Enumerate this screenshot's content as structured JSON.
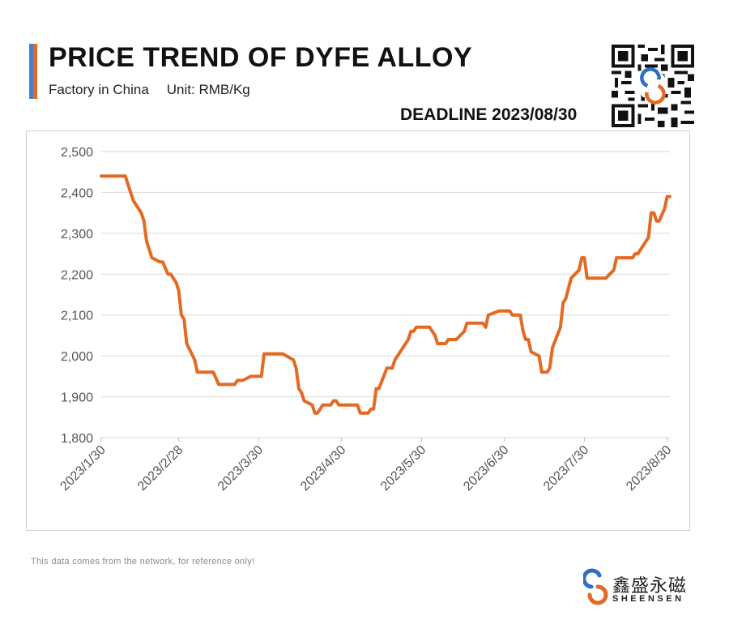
{
  "header": {
    "title": "PRICE TREND OF DYFE ALLOY",
    "source": "Factory in China",
    "unit": "Unit: RMB/Kg",
    "deadline": "DEADLINE 2023/08/30"
  },
  "footer": {
    "note": "This data comes from the network, for reference only!",
    "brand_cn": "鑫盛永磁",
    "brand_en": "SHEENSEN"
  },
  "icons": {
    "qr": "qr-code-icon",
    "logo": "sheensen-logo-icon"
  },
  "colors": {
    "line": "#e36a24",
    "brand_blue": "#2c6fc4",
    "brand_orange": "#e36a24"
  },
  "chart_data": {
    "type": "line",
    "title": "PRICE TREND OF DYFE ALLOY",
    "xlabel": "",
    "ylabel": "",
    "ylim": [
      1800,
      2500
    ],
    "yticks": [
      1800,
      1900,
      2000,
      2100,
      2200,
      2300,
      2400,
      2500
    ],
    "ytick_labels": [
      "1,800",
      "1,900",
      "2,000",
      "2,100",
      "2,200",
      "2,300",
      "2,400",
      "2,500"
    ],
    "xlim": [
      "2023-01-30",
      "2023-08-31"
    ],
    "xticks": [
      "2023-01-30",
      "2023-02-28",
      "2023-03-30",
      "2023-04-30",
      "2023-05-30",
      "2023-06-30",
      "2023-07-30",
      "2023-08-30"
    ],
    "xtick_labels": [
      "2023/1/30",
      "2023/2/28",
      "2023/3/30",
      "2023/4/30",
      "2023/5/30",
      "2023/6/30",
      "2023/7/30",
      "2023/8/30"
    ],
    "grid": true,
    "legend": "none",
    "series": [
      {
        "color": "#e36a24",
        "points": [
          [
            "2023-01-30",
            2440
          ],
          [
            "2023-02-08",
            2440
          ],
          [
            "2023-02-11",
            2380
          ],
          [
            "2023-02-14",
            2350
          ],
          [
            "2023-02-15",
            2330
          ],
          [
            "2023-02-16",
            2280
          ],
          [
            "2023-02-18",
            2240
          ],
          [
            "2023-02-21",
            2230
          ],
          [
            "2023-02-22",
            2230
          ],
          [
            "2023-02-24",
            2200
          ],
          [
            "2023-02-25",
            2200
          ],
          [
            "2023-02-27",
            2180
          ],
          [
            "2023-02-28",
            2160
          ],
          [
            "2023-03-01",
            2100
          ],
          [
            "2023-03-02",
            2090
          ],
          [
            "2023-03-03",
            2030
          ],
          [
            "2023-03-06",
            1990
          ],
          [
            "2023-03-07",
            1960
          ],
          [
            "2023-03-13",
            1960
          ],
          [
            "2023-03-15",
            1930
          ],
          [
            "2023-03-21",
            1930
          ],
          [
            "2023-03-22",
            1940
          ],
          [
            "2023-03-24",
            1940
          ],
          [
            "2023-03-27",
            1950
          ],
          [
            "2023-03-31",
            1950
          ],
          [
            "2023-04-01",
            2005
          ],
          [
            "2023-04-08",
            2005
          ],
          [
            "2023-04-12",
            1990
          ],
          [
            "2023-04-13",
            1970
          ],
          [
            "2023-04-14",
            1920
          ],
          [
            "2023-04-15",
            1910
          ],
          [
            "2023-04-16",
            1890
          ],
          [
            "2023-04-19",
            1880
          ],
          [
            "2023-04-20",
            1860
          ],
          [
            "2023-04-21",
            1860
          ],
          [
            "2023-04-23",
            1880
          ],
          [
            "2023-04-26",
            1880
          ],
          [
            "2023-04-27",
            1890
          ],
          [
            "2023-04-28",
            1890
          ],
          [
            "2023-04-29",
            1880
          ],
          [
            "2023-05-06",
            1880
          ],
          [
            "2023-05-07",
            1860
          ],
          [
            "2023-05-10",
            1860
          ],
          [
            "2023-05-11",
            1870
          ],
          [
            "2023-05-12",
            1870
          ],
          [
            "2023-05-13",
            1920
          ],
          [
            "2023-05-14",
            1920
          ],
          [
            "2023-05-17",
            1970
          ],
          [
            "2023-05-19",
            1970
          ],
          [
            "2023-05-20",
            1990
          ],
          [
            "2023-05-24",
            2030
          ],
          [
            "2023-05-25",
            2040
          ],
          [
            "2023-05-26",
            2060
          ],
          [
            "2023-05-27",
            2060
          ],
          [
            "2023-05-28",
            2070
          ],
          [
            "2023-06-02",
            2070
          ],
          [
            "2023-06-04",
            2050
          ],
          [
            "2023-06-05",
            2030
          ],
          [
            "2023-06-08",
            2030
          ],
          [
            "2023-06-09",
            2040
          ],
          [
            "2023-06-12",
            2040
          ],
          [
            "2023-06-15",
            2060
          ],
          [
            "2023-06-16",
            2080
          ],
          [
            "2023-06-22",
            2080
          ],
          [
            "2023-06-23",
            2070
          ],
          [
            "2023-06-24",
            2100
          ],
          [
            "2023-06-28",
            2110
          ],
          [
            "2023-07-02",
            2110
          ],
          [
            "2023-07-03",
            2100
          ],
          [
            "2023-07-06",
            2100
          ],
          [
            "2023-07-07",
            2060
          ],
          [
            "2023-07-08",
            2040
          ],
          [
            "2023-07-09",
            2040
          ],
          [
            "2023-07-10",
            2010
          ],
          [
            "2023-07-13",
            2000
          ],
          [
            "2023-07-14",
            1960
          ],
          [
            "2023-07-16",
            1960
          ],
          [
            "2023-07-17",
            1970
          ],
          [
            "2023-07-18",
            2020
          ],
          [
            "2023-07-21",
            2070
          ],
          [
            "2023-07-22",
            2130
          ],
          [
            "2023-07-23",
            2140
          ],
          [
            "2023-07-25",
            2190
          ],
          [
            "2023-07-28",
            2210
          ],
          [
            "2023-07-29",
            2240
          ],
          [
            "2023-07-30",
            2240
          ],
          [
            "2023-07-31",
            2190
          ],
          [
            "2023-08-07",
            2190
          ],
          [
            "2023-08-10",
            2210
          ],
          [
            "2023-08-11",
            2240
          ],
          [
            "2023-08-17",
            2240
          ],
          [
            "2023-08-18",
            2250
          ],
          [
            "2023-08-19",
            2250
          ],
          [
            "2023-08-23",
            2290
          ],
          [
            "2023-08-24",
            2350
          ],
          [
            "2023-08-25",
            2350
          ],
          [
            "2023-08-26",
            2330
          ],
          [
            "2023-08-27",
            2330
          ],
          [
            "2023-08-29",
            2360
          ],
          [
            "2023-08-30",
            2390
          ],
          [
            "2023-08-31",
            2390
          ]
        ]
      }
    ]
  }
}
